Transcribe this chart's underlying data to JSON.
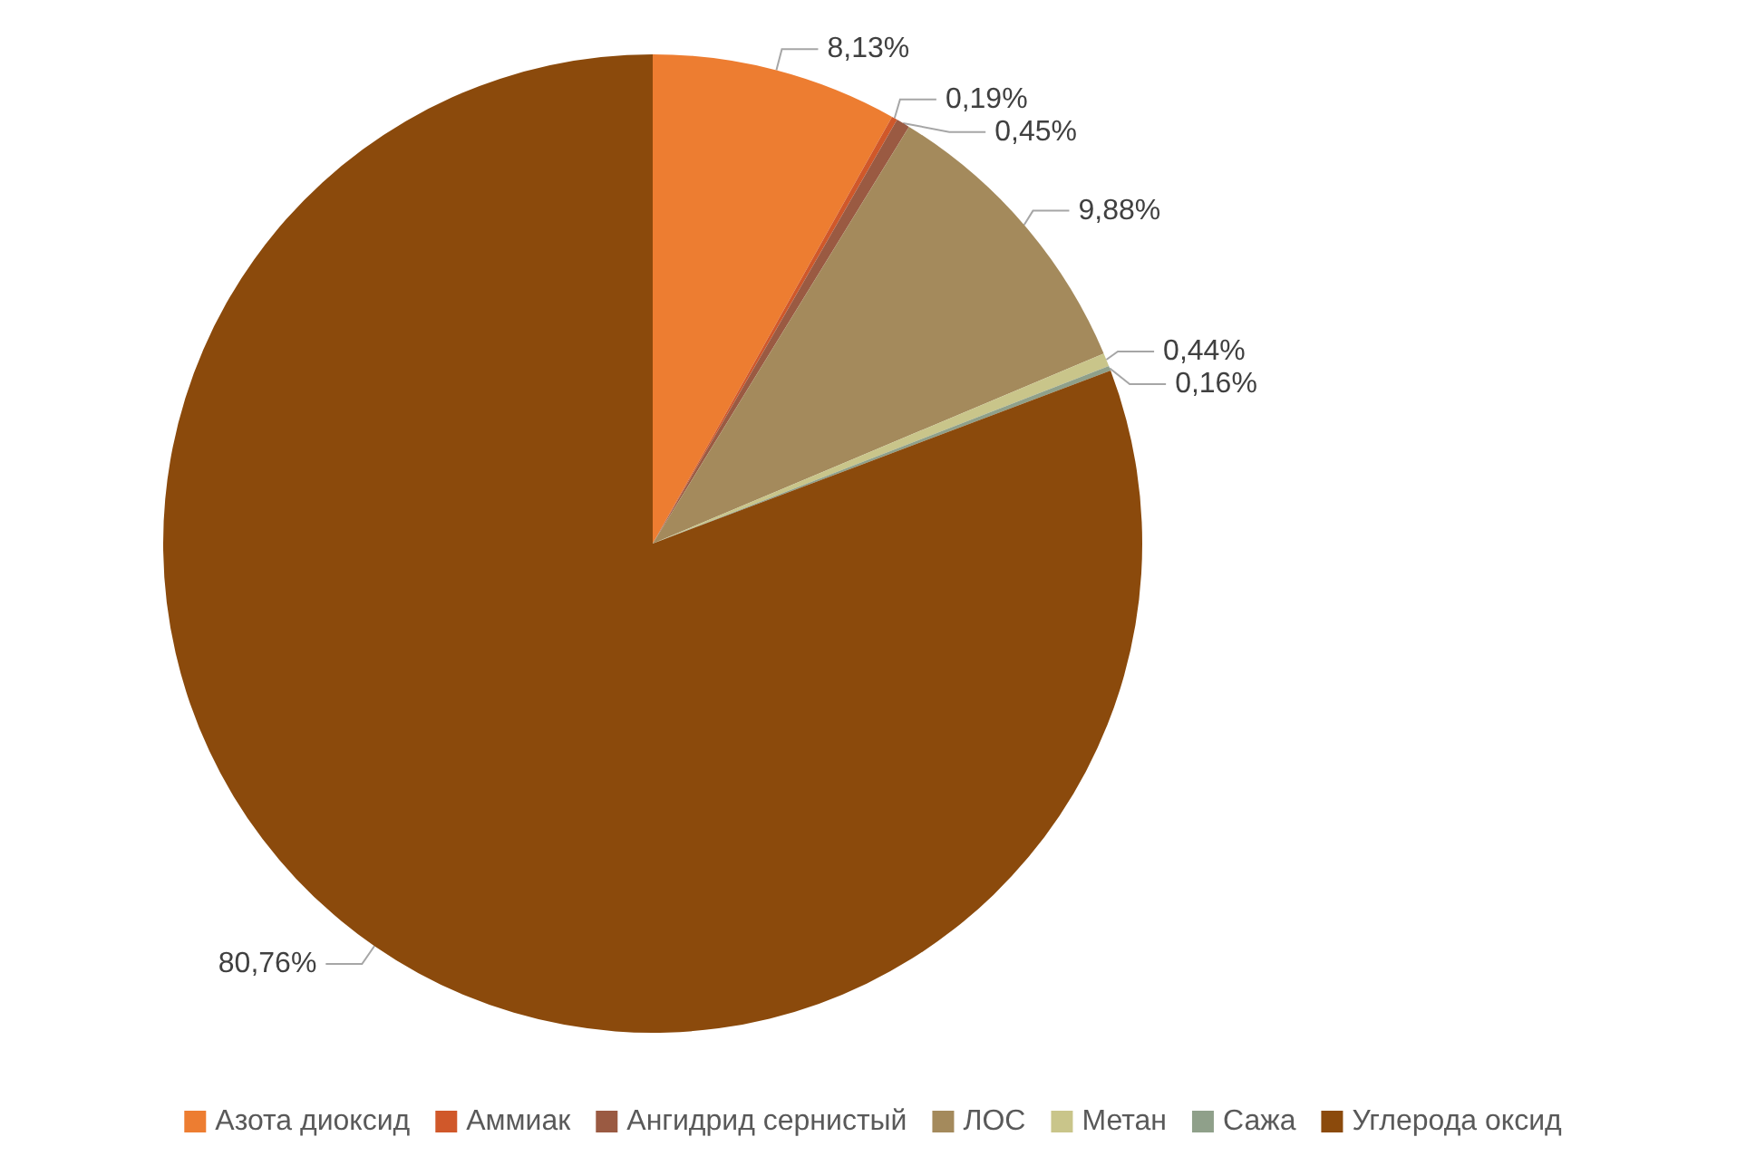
{
  "chart_data": {
    "type": "pie",
    "categories": [
      "Азота диоксид",
      "Аммиак",
      "Ангидрид сернистый",
      "ЛОС",
      "Метан",
      "Сажа",
      "Углерода оксид"
    ],
    "values": [
      8.13,
      0.19,
      0.45,
      9.88,
      0.44,
      0.16,
      80.76
    ],
    "value_labels": [
      "8,13%",
      "0,19%",
      "0,45%",
      "9,88%",
      "0,44%",
      "0,16%",
      "80,76%"
    ],
    "colors": [
      "#ed7d31",
      "#d0582a",
      "#9a5a42",
      "#a48a5c",
      "#c9c58a",
      "#8fa08a",
      "#8b4a0c"
    ],
    "legend": "bottom"
  }
}
